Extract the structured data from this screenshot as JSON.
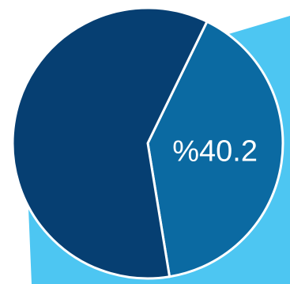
{
  "chart_data": {
    "type": "pie",
    "values": [
      40.2,
      59.8
    ],
    "value_labels": [
      "%40.2",
      null
    ],
    "colors": [
      "#0b6aa2",
      "#063f72"
    ]
  }
}
